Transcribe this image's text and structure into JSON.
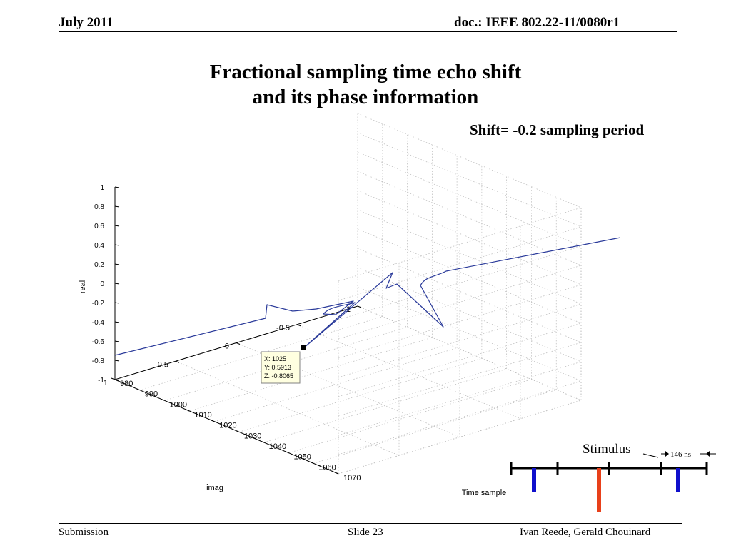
{
  "header": {
    "date": "July 2011",
    "doc": "doc.: IEEE 802.22-11/0080r1"
  },
  "slide": {
    "title_line1": "Fractional sampling time echo shift",
    "title_line2": "and its phase information",
    "shift_label": "Shift= -0.2 sampling period"
  },
  "footer": {
    "left": "Submission",
    "center": "Slide 23",
    "right": "Ivan Reede, Gerald Chouinard"
  },
  "chart_data": {
    "type": "line",
    "projection": "3d",
    "xlabel": "Time sample",
    "ylabel": "imag",
    "zlabel": "real",
    "xlim": [
      980,
      1070
    ],
    "ylim": [
      -1,
      1
    ],
    "zlim": [
      -1,
      1
    ],
    "x_ticks": [
      "980",
      "990",
      "1000",
      "1010",
      "1020",
      "1030",
      "1040",
      "1050",
      "1060",
      "1070"
    ],
    "y_ticks": [
      "1",
      "0.5",
      "0",
      "-0.5",
      "-1"
    ],
    "z_ticks": [
      "1",
      "0.8",
      "0.6",
      "0.4",
      "0.2",
      "0",
      "-0.2",
      "-0.4",
      "-0.6",
      "-0.8",
      "-1"
    ],
    "grid": true,
    "line_color": "#2a3a9a",
    "datatip": {
      "lines": [
        "X: 1025",
        "Y: 0.5913",
        "Z: -0.8065"
      ]
    }
  },
  "stimulus": {
    "label": "Stimulus",
    "spacing_label": "146 ns",
    "colors": {
      "blue": "#1010cc",
      "red": "#e8401a"
    }
  }
}
